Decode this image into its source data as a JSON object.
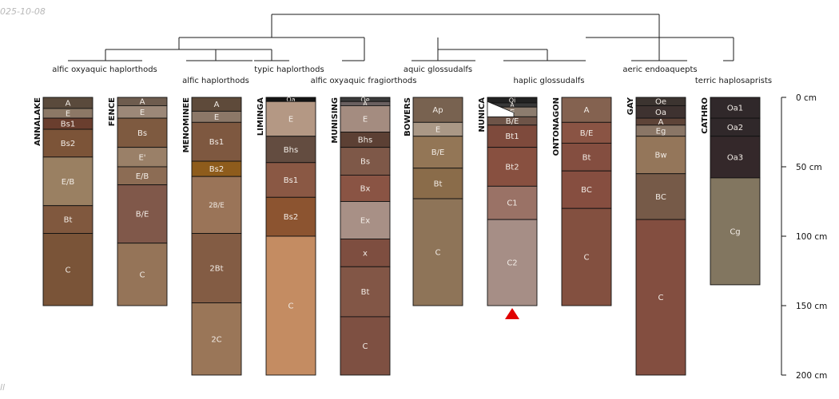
{
  "header": {
    "date": "025-10-08",
    "footnote": "ll"
  },
  "colors": {
    "line": "#1a1a1a",
    "label_light": "#f2ece6",
    "marker": "#e00000"
  },
  "depth_axis": {
    "max_cm": 200,
    "ticks": [
      0,
      50,
      100,
      150,
      200
    ],
    "unit": "cm"
  },
  "taxa": [
    {
      "label": "alfic oxyaquic haplorthods"
    },
    {
      "label": "alfic haplorthods"
    },
    {
      "label": "typic haplorthods"
    },
    {
      "label": "alfic oxyaquic fragiorthods"
    },
    {
      "label": "aquic glossudalfs"
    },
    {
      "label": "haplic glossudalfs"
    },
    {
      "label": "aeric endoaquepts"
    },
    {
      "label": "terric haplosaprists"
    }
  ],
  "profiles": [
    {
      "name": "ANNALAKE",
      "horizons": [
        {
          "name": "A",
          "top": 0,
          "bottom": 8,
          "color": "#5a4a3c"
        },
        {
          "name": "E",
          "top": 8,
          "bottom": 15,
          "color": "#8c7866"
        },
        {
          "name": "Bs1",
          "top": 15,
          "bottom": 23,
          "color": "#6a3e2e"
        },
        {
          "name": "Bs2",
          "top": 23,
          "bottom": 43,
          "color": "#7c5438"
        },
        {
          "name": "E/B",
          "top": 43,
          "bottom": 78,
          "color": "#9a8062"
        },
        {
          "name": "Bt",
          "top": 78,
          "bottom": 98,
          "color": "#80583e"
        },
        {
          "name": "C",
          "top": 98,
          "bottom": 150,
          "color": "#7a5438"
        }
      ]
    },
    {
      "name": "FENCE",
      "horizons": [
        {
          "name": "A",
          "top": 0,
          "bottom": 6,
          "color": "#6e5c4e"
        },
        {
          "name": "E",
          "top": 6,
          "bottom": 15,
          "color": "#9c8878"
        },
        {
          "name": "Bs",
          "top": 15,
          "bottom": 36,
          "color": "#7e5a40"
        },
        {
          "name": "E'",
          "top": 36,
          "bottom": 50,
          "color": "#9a8068"
        },
        {
          "name": "E/B",
          "top": 50,
          "bottom": 63,
          "color": "#8c6c54"
        },
        {
          "name": "B/E",
          "top": 63,
          "bottom": 105,
          "color": "#80584a"
        },
        {
          "name": "C",
          "top": 105,
          "bottom": 150,
          "color": "#957458"
        }
      ]
    },
    {
      "name": "MENOMINEE",
      "horizons": [
        {
          "name": "A",
          "top": 0,
          "bottom": 10,
          "color": "#5e4a3a"
        },
        {
          "name": "E",
          "top": 10,
          "bottom": 18,
          "color": "#8c7868"
        },
        {
          "name": "Bs1",
          "top": 18,
          "bottom": 46,
          "color": "#7e5840"
        },
        {
          "name": "Bs2",
          "top": 46,
          "bottom": 57,
          "color": "#8e5c1c"
        },
        {
          "name": "2B/E",
          "top": 57,
          "bottom": 98,
          "color": "#9a7458"
        },
        {
          "name": "2Bt",
          "top": 98,
          "bottom": 148,
          "color": "#835c44"
        },
        {
          "name": "2C",
          "top": 148,
          "bottom": 200,
          "color": "#9a7658"
        }
      ]
    },
    {
      "name": "LIMINGA",
      "horizons": [
        {
          "name": "Oa",
          "top": 0,
          "bottom": 3,
          "color": "#141414"
        },
        {
          "name": "E",
          "top": 3,
          "bottom": 28,
          "color": "#b49884"
        },
        {
          "name": "Bhs",
          "top": 28,
          "bottom": 47,
          "color": "#634c40"
        },
        {
          "name": "Bs1",
          "top": 47,
          "bottom": 72,
          "color": "#8a5844"
        },
        {
          "name": "Bs2",
          "top": 72,
          "bottom": 100,
          "color": "#8c5430"
        },
        {
          "name": "C",
          "top": 100,
          "bottom": 200,
          "color": "#c48c62"
        }
      ]
    },
    {
      "name": "MUNISING",
      "horizons": [
        {
          "name": "Oe",
          "top": 0,
          "bottom": 3,
          "color": "#3a3a3a"
        },
        {
          "name": "A",
          "top": 3,
          "bottom": 6,
          "color": "#6a6060"
        },
        {
          "name": "E",
          "top": 6,
          "bottom": 25,
          "color": "#a48c80"
        },
        {
          "name": "Bhs",
          "top": 25,
          "bottom": 36,
          "color": "#5c4034"
        },
        {
          "name": "Bs",
          "top": 36,
          "bottom": 56,
          "color": "#7e5848"
        },
        {
          "name": "Bx",
          "top": 56,
          "bottom": 75,
          "color": "#8a5444"
        },
        {
          "name": "Ex",
          "top": 75,
          "bottom": 102,
          "color": "#a89086"
        },
        {
          "name": "x",
          "top": 102,
          "bottom": 122,
          "color": "#7e4e40"
        },
        {
          "name": "Bt",
          "top": 122,
          "bottom": 158,
          "color": "#825646"
        },
        {
          "name": "C",
          "top": 158,
          "bottom": 200,
          "color": "#7e5042"
        }
      ]
    },
    {
      "name": "BOWERS",
      "horizons": [
        {
          "name": "Ap",
          "top": 0,
          "bottom": 18,
          "color": "#786250"
        },
        {
          "name": "E",
          "top": 18,
          "bottom": 28,
          "color": "#aa9886"
        },
        {
          "name": "B/E",
          "top": 28,
          "bottom": 51,
          "color": "#937656"
        },
        {
          "name": "Bt",
          "top": 51,
          "bottom": 73,
          "color": "#8a6c4a"
        },
        {
          "name": "C",
          "top": 73,
          "bottom": 150,
          "color": "#8e7458"
        }
      ]
    },
    {
      "name": "NUNICA",
      "horizons": [
        {
          "name": "Oi",
          "top": 0,
          "bottom": 4,
          "color": "#222222"
        },
        {
          "name": "A",
          "top": 4,
          "bottom": 7,
          "color": "#383838"
        },
        {
          "name": "E",
          "top": 7,
          "bottom": 14,
          "color": "#8c7c6e"
        },
        {
          "name": "B/E",
          "top": 14,
          "bottom": 20,
          "color": "#6e5448"
        },
        {
          "name": "Bt1",
          "top": 20,
          "bottom": 36,
          "color": "#7e4a3c"
        },
        {
          "name": "Bt2",
          "top": 36,
          "bottom": 64,
          "color": "#885040"
        },
        {
          "name": "C1",
          "top": 64,
          "bottom": 88,
          "color": "#9a7266"
        },
        {
          "name": "C2",
          "top": 88,
          "bottom": 150,
          "color": "#a68e86"
        }
      ]
    },
    {
      "name": "ONTONAGON",
      "horizons": [
        {
          "name": "A",
          "top": 0,
          "bottom": 18,
          "color": "#846250"
        },
        {
          "name": "B/E",
          "top": 18,
          "bottom": 33,
          "color": "#8a5444"
        },
        {
          "name": "Bt",
          "top": 33,
          "bottom": 53,
          "color": "#844e40"
        },
        {
          "name": "BC",
          "top": 53,
          "bottom": 80,
          "color": "#864e40"
        },
        {
          "name": "C",
          "top": 80,
          "bottom": 150,
          "color": "#835040"
        }
      ]
    },
    {
      "name": "GAY",
      "horizons": [
        {
          "name": "Oe",
          "top": 0,
          "bottom": 6,
          "color": "#3c3430"
        },
        {
          "name": "Oa",
          "top": 6,
          "bottom": 15,
          "color": "#3e3230"
        },
        {
          "name": "A",
          "top": 15,
          "bottom": 20,
          "color": "#5e4438"
        },
        {
          "name": "Eg",
          "top": 20,
          "bottom": 28,
          "color": "#8a7666"
        },
        {
          "name": "Bw",
          "top": 28,
          "bottom": 55,
          "color": "#94765a"
        },
        {
          "name": "BC",
          "top": 55,
          "bottom": 88,
          "color": "#765a48"
        },
        {
          "name": "C",
          "top": 88,
          "bottom": 200,
          "color": "#834e40"
        }
      ]
    },
    {
      "name": "CATHRO",
      "horizons": [
        {
          "name": "Oa1",
          "top": 0,
          "bottom": 15,
          "color": "#30282a"
        },
        {
          "name": "Oa2",
          "top": 15,
          "bottom": 28,
          "color": "#30282a"
        },
        {
          "name": "Oa3",
          "top": 28,
          "bottom": 58,
          "color": "#34282a"
        },
        {
          "name": "Cg",
          "top": 58,
          "bottom": 135,
          "color": "#827660"
        }
      ]
    }
  ]
}
